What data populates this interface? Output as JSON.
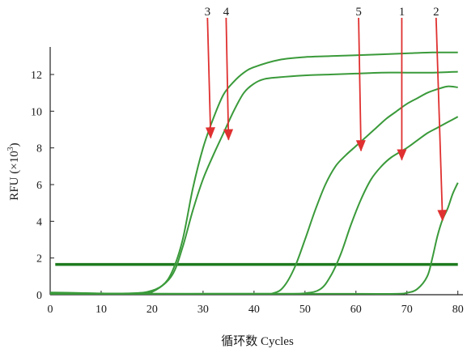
{
  "chart_data": {
    "type": "line",
    "xlabel": "循环数 Cycles",
    "ylabel_main": "RFU (×10",
    "ylabel_sup": "3",
    "ylabel_end": ")",
    "xlim": [
      0,
      81
    ],
    "ylim": [
      0,
      13.5
    ],
    "xticks": [
      "0",
      "10",
      "20",
      "30",
      "40",
      "50",
      "60",
      "70",
      "80"
    ],
    "yticks": [
      "0",
      "2",
      "4",
      "6",
      "8",
      "10",
      "12"
    ],
    "threshold": 1.65,
    "series": [
      {
        "points": [
          [
            0,
            0.12
          ],
          [
            5,
            0.1
          ],
          [
            10,
            0.07
          ],
          [
            15,
            0.07
          ],
          [
            19,
            0.15
          ],
          [
            22,
            0.5
          ],
          [
            24,
            1.3
          ],
          [
            26,
            3
          ],
          [
            28,
            5.8
          ],
          [
            30,
            8
          ],
          [
            32,
            9.6
          ],
          [
            34,
            10.9
          ],
          [
            36,
            11.6
          ],
          [
            38,
            12.1
          ],
          [
            40,
            12.4
          ],
          [
            45,
            12.8
          ],
          [
            50,
            12.95
          ],
          [
            55,
            13
          ],
          [
            60,
            13.05
          ],
          [
            65,
            13.1
          ],
          [
            70,
            13.15
          ],
          [
            75,
            13.2
          ],
          [
            80,
            13.2
          ]
        ]
      },
      {
        "points": [
          [
            0,
            0.05
          ],
          [
            10,
            0.05
          ],
          [
            18,
            0.07
          ],
          [
            21,
            0.3
          ],
          [
            24,
            1.1
          ],
          [
            26,
            2.6
          ],
          [
            28,
            4.6
          ],
          [
            30,
            6.3
          ],
          [
            32,
            7.6
          ],
          [
            34,
            8.8
          ],
          [
            36,
            10
          ],
          [
            38,
            11
          ],
          [
            40,
            11.5
          ],
          [
            42,
            11.75
          ],
          [
            45,
            11.85
          ],
          [
            50,
            11.95
          ],
          [
            55,
            12
          ],
          [
            60,
            12.05
          ],
          [
            65,
            12.1
          ],
          [
            70,
            12.1
          ],
          [
            75,
            12.1
          ],
          [
            80,
            12.15
          ]
        ]
      },
      {
        "points": [
          [
            0,
            0.05
          ],
          [
            20,
            0.05
          ],
          [
            40,
            0.05
          ],
          [
            44,
            0.1
          ],
          [
            46,
            0.5
          ],
          [
            48,
            1.5
          ],
          [
            50,
            3
          ],
          [
            52,
            4.6
          ],
          [
            54,
            6
          ],
          [
            56,
            7
          ],
          [
            58,
            7.6
          ],
          [
            60,
            8.1
          ],
          [
            62,
            8.6
          ],
          [
            64,
            9.1
          ],
          [
            66,
            9.6
          ],
          [
            68,
            10
          ],
          [
            70,
            10.4
          ],
          [
            72,
            10.7
          ],
          [
            74,
            11
          ],
          [
            76,
            11.2
          ],
          [
            78,
            11.35
          ],
          [
            80,
            11.3
          ]
        ]
      },
      {
        "points": [
          [
            0,
            0.05
          ],
          [
            20,
            0.05
          ],
          [
            45,
            0.05
          ],
          [
            50,
            0.08
          ],
          [
            53,
            0.3
          ],
          [
            55,
            1
          ],
          [
            57,
            2.2
          ],
          [
            59,
            3.8
          ],
          [
            61,
            5.2
          ],
          [
            63,
            6.3
          ],
          [
            65,
            7
          ],
          [
            67,
            7.5
          ],
          [
            70,
            8
          ],
          [
            72,
            8.4
          ],
          [
            74,
            8.8
          ],
          [
            76,
            9.1
          ],
          [
            78,
            9.4
          ],
          [
            80,
            9.7
          ]
        ]
      },
      {
        "points": [
          [
            0,
            0.05
          ],
          [
            20,
            0.05
          ],
          [
            40,
            0.05
          ],
          [
            60,
            0.05
          ],
          [
            68,
            0.05
          ],
          [
            70,
            0.1
          ],
          [
            72,
            0.3
          ],
          [
            74,
            1
          ],
          [
            75,
            2
          ],
          [
            76,
            3.2
          ],
          [
            77,
            4.1
          ],
          [
            78,
            4.7
          ],
          [
            79,
            5.5
          ],
          [
            80,
            6.1
          ]
        ]
      }
    ],
    "arrows": [
      {
        "label": "3",
        "x": 31.5,
        "y": 8.5
      },
      {
        "label": "4",
        "x": 35,
        "y": 8.4
      },
      {
        "label": "5",
        "x": 61,
        "y": 7.8
      },
      {
        "label": "1",
        "x": 69,
        "y": 7.3
      },
      {
        "label": "2",
        "x": 77,
        "y": 4.0
      }
    ],
    "line_color": "#3a9a3a",
    "threshold_color": "#1e7a1e",
    "arrow_color": "#e03030",
    "grid": false
  }
}
